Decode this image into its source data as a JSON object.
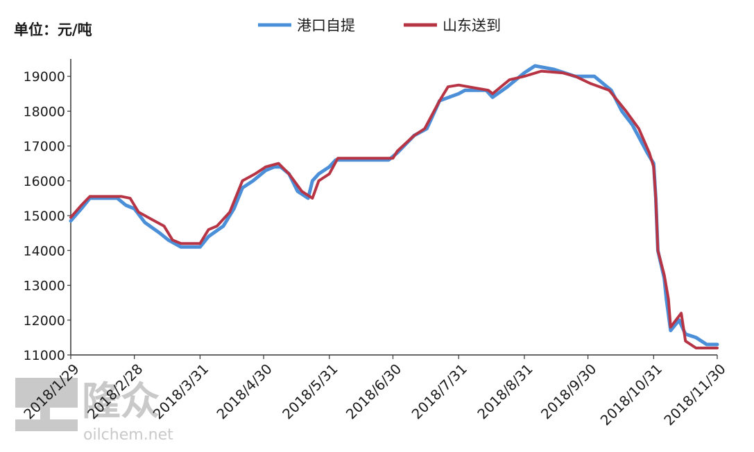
{
  "chart_data": {
    "type": "line",
    "unit_label": "单位：元/吨",
    "ylim": [
      11000,
      19500
    ],
    "yticks": [
      11000,
      12000,
      13000,
      14000,
      15000,
      16000,
      17000,
      18000,
      19000
    ],
    "xticks": [
      "2018/1/29",
      "2018/2/28",
      "2018/3/31",
      "2018/4/30",
      "2018/5/31",
      "2018/6/30",
      "2018/7/31",
      "2018/8/31",
      "2018/9/30",
      "2018/10/31",
      "2018/11/30"
    ],
    "xrange": [
      "2018-01-29",
      "2018-11-30"
    ],
    "grid": false,
    "legend_position": "top-center",
    "series": [
      {
        "name": "港口自提",
        "color": "#4a8fd8",
        "points": [
          [
            "2018-01-29",
            14850
          ],
          [
            "2018-02-03",
            15200
          ],
          [
            "2018-02-07",
            15500
          ],
          [
            "2018-02-20",
            15500
          ],
          [
            "2018-02-24",
            15300
          ],
          [
            "2018-02-28",
            15200
          ],
          [
            "2018-03-05",
            14800
          ],
          [
            "2018-03-12",
            14500
          ],
          [
            "2018-03-16",
            14300
          ],
          [
            "2018-03-22",
            14100
          ],
          [
            "2018-03-31",
            14100
          ],
          [
            "2018-04-04",
            14400
          ],
          [
            "2018-04-11",
            14700
          ],
          [
            "2018-04-16",
            15200
          ],
          [
            "2018-04-20",
            15800
          ],
          [
            "2018-04-25",
            16000
          ],
          [
            "2018-05-01",
            16300
          ],
          [
            "2018-05-05",
            16400
          ],
          [
            "2018-05-08",
            16400
          ],
          [
            "2018-05-12",
            16200
          ],
          [
            "2018-05-16",
            15700
          ],
          [
            "2018-05-21",
            15500
          ],
          [
            "2018-05-23",
            16000
          ],
          [
            "2018-05-26",
            16200
          ],
          [
            "2018-05-31",
            16400
          ],
          [
            "2018-06-03",
            16600
          ],
          [
            "2018-06-28",
            16600
          ],
          [
            "2018-07-02",
            16800
          ],
          [
            "2018-07-10",
            17300
          ],
          [
            "2018-07-16",
            17500
          ],
          [
            "2018-07-22",
            18300
          ],
          [
            "2018-07-31",
            18500
          ],
          [
            "2018-08-03",
            18600
          ],
          [
            "2018-08-13",
            18600
          ],
          [
            "2018-08-16",
            18400
          ],
          [
            "2018-08-23",
            18700
          ],
          [
            "2018-08-31",
            19100
          ],
          [
            "2018-09-05",
            19300
          ],
          [
            "2018-09-14",
            19200
          ],
          [
            "2018-09-24",
            19000
          ],
          [
            "2018-10-03",
            19000
          ],
          [
            "2018-10-11",
            18600
          ],
          [
            "2018-10-16",
            18000
          ],
          [
            "2018-10-21",
            17600
          ],
          [
            "2018-10-28",
            16800
          ],
          [
            "2018-10-31",
            16500
          ],
          [
            "2018-11-01",
            15500
          ],
          [
            "2018-11-02",
            14000
          ],
          [
            "2018-11-05",
            13200
          ],
          [
            "2018-11-06",
            12600
          ],
          [
            "2018-11-08",
            11700
          ],
          [
            "2018-11-12",
            12000
          ],
          [
            "2018-11-15",
            11600
          ],
          [
            "2018-11-20",
            11500
          ],
          [
            "2018-11-25",
            11300
          ],
          [
            "2018-11-30",
            11300
          ]
        ]
      },
      {
        "name": "山东送到",
        "color": "#b73445",
        "points": [
          [
            "2018-01-29",
            14950
          ],
          [
            "2018-02-03",
            15300
          ],
          [
            "2018-02-07",
            15550
          ],
          [
            "2018-02-22",
            15550
          ],
          [
            "2018-02-26",
            15500
          ],
          [
            "2018-03-02",
            15100
          ],
          [
            "2018-03-08",
            14900
          ],
          [
            "2018-03-14",
            14700
          ],
          [
            "2018-03-18",
            14300
          ],
          [
            "2018-03-22",
            14200
          ],
          [
            "2018-03-31",
            14200
          ],
          [
            "2018-04-04",
            14600
          ],
          [
            "2018-04-08",
            14700
          ],
          [
            "2018-04-14",
            15100
          ],
          [
            "2018-04-20",
            16000
          ],
          [
            "2018-04-26",
            16200
          ],
          [
            "2018-05-01",
            16400
          ],
          [
            "2018-05-07",
            16500
          ],
          [
            "2018-05-12",
            16200
          ],
          [
            "2018-05-18",
            15700
          ],
          [
            "2018-05-23",
            15500
          ],
          [
            "2018-05-26",
            16000
          ],
          [
            "2018-05-31",
            16200
          ],
          [
            "2018-06-04",
            16650
          ],
          [
            "2018-06-30",
            16650
          ],
          [
            "2018-07-02",
            16850
          ],
          [
            "2018-07-10",
            17300
          ],
          [
            "2018-07-15",
            17500
          ],
          [
            "2018-07-22",
            18300
          ],
          [
            "2018-07-26",
            18700
          ],
          [
            "2018-07-31",
            18750
          ],
          [
            "2018-08-14",
            18600
          ],
          [
            "2018-08-16",
            18500
          ],
          [
            "2018-08-24",
            18900
          ],
          [
            "2018-08-31",
            19000
          ],
          [
            "2018-09-08",
            19150
          ],
          [
            "2018-09-18",
            19100
          ],
          [
            "2018-09-24",
            19000
          ],
          [
            "2018-10-01",
            18800
          ],
          [
            "2018-10-10",
            18600
          ],
          [
            "2018-10-18",
            18000
          ],
          [
            "2018-10-24",
            17500
          ],
          [
            "2018-10-29",
            16800
          ],
          [
            "2018-10-31",
            16400
          ],
          [
            "2018-11-01",
            15500
          ],
          [
            "2018-11-02",
            14000
          ],
          [
            "2018-11-05",
            13300
          ],
          [
            "2018-11-07",
            12600
          ],
          [
            "2018-11-08",
            11800
          ],
          [
            "2018-11-13",
            12200
          ],
          [
            "2018-11-15",
            11400
          ],
          [
            "2018-11-20",
            11200
          ],
          [
            "2018-11-30",
            11200
          ]
        ]
      }
    ]
  },
  "watermark": {
    "logo_text": "隆众",
    "site_text": "oilchem.net"
  }
}
